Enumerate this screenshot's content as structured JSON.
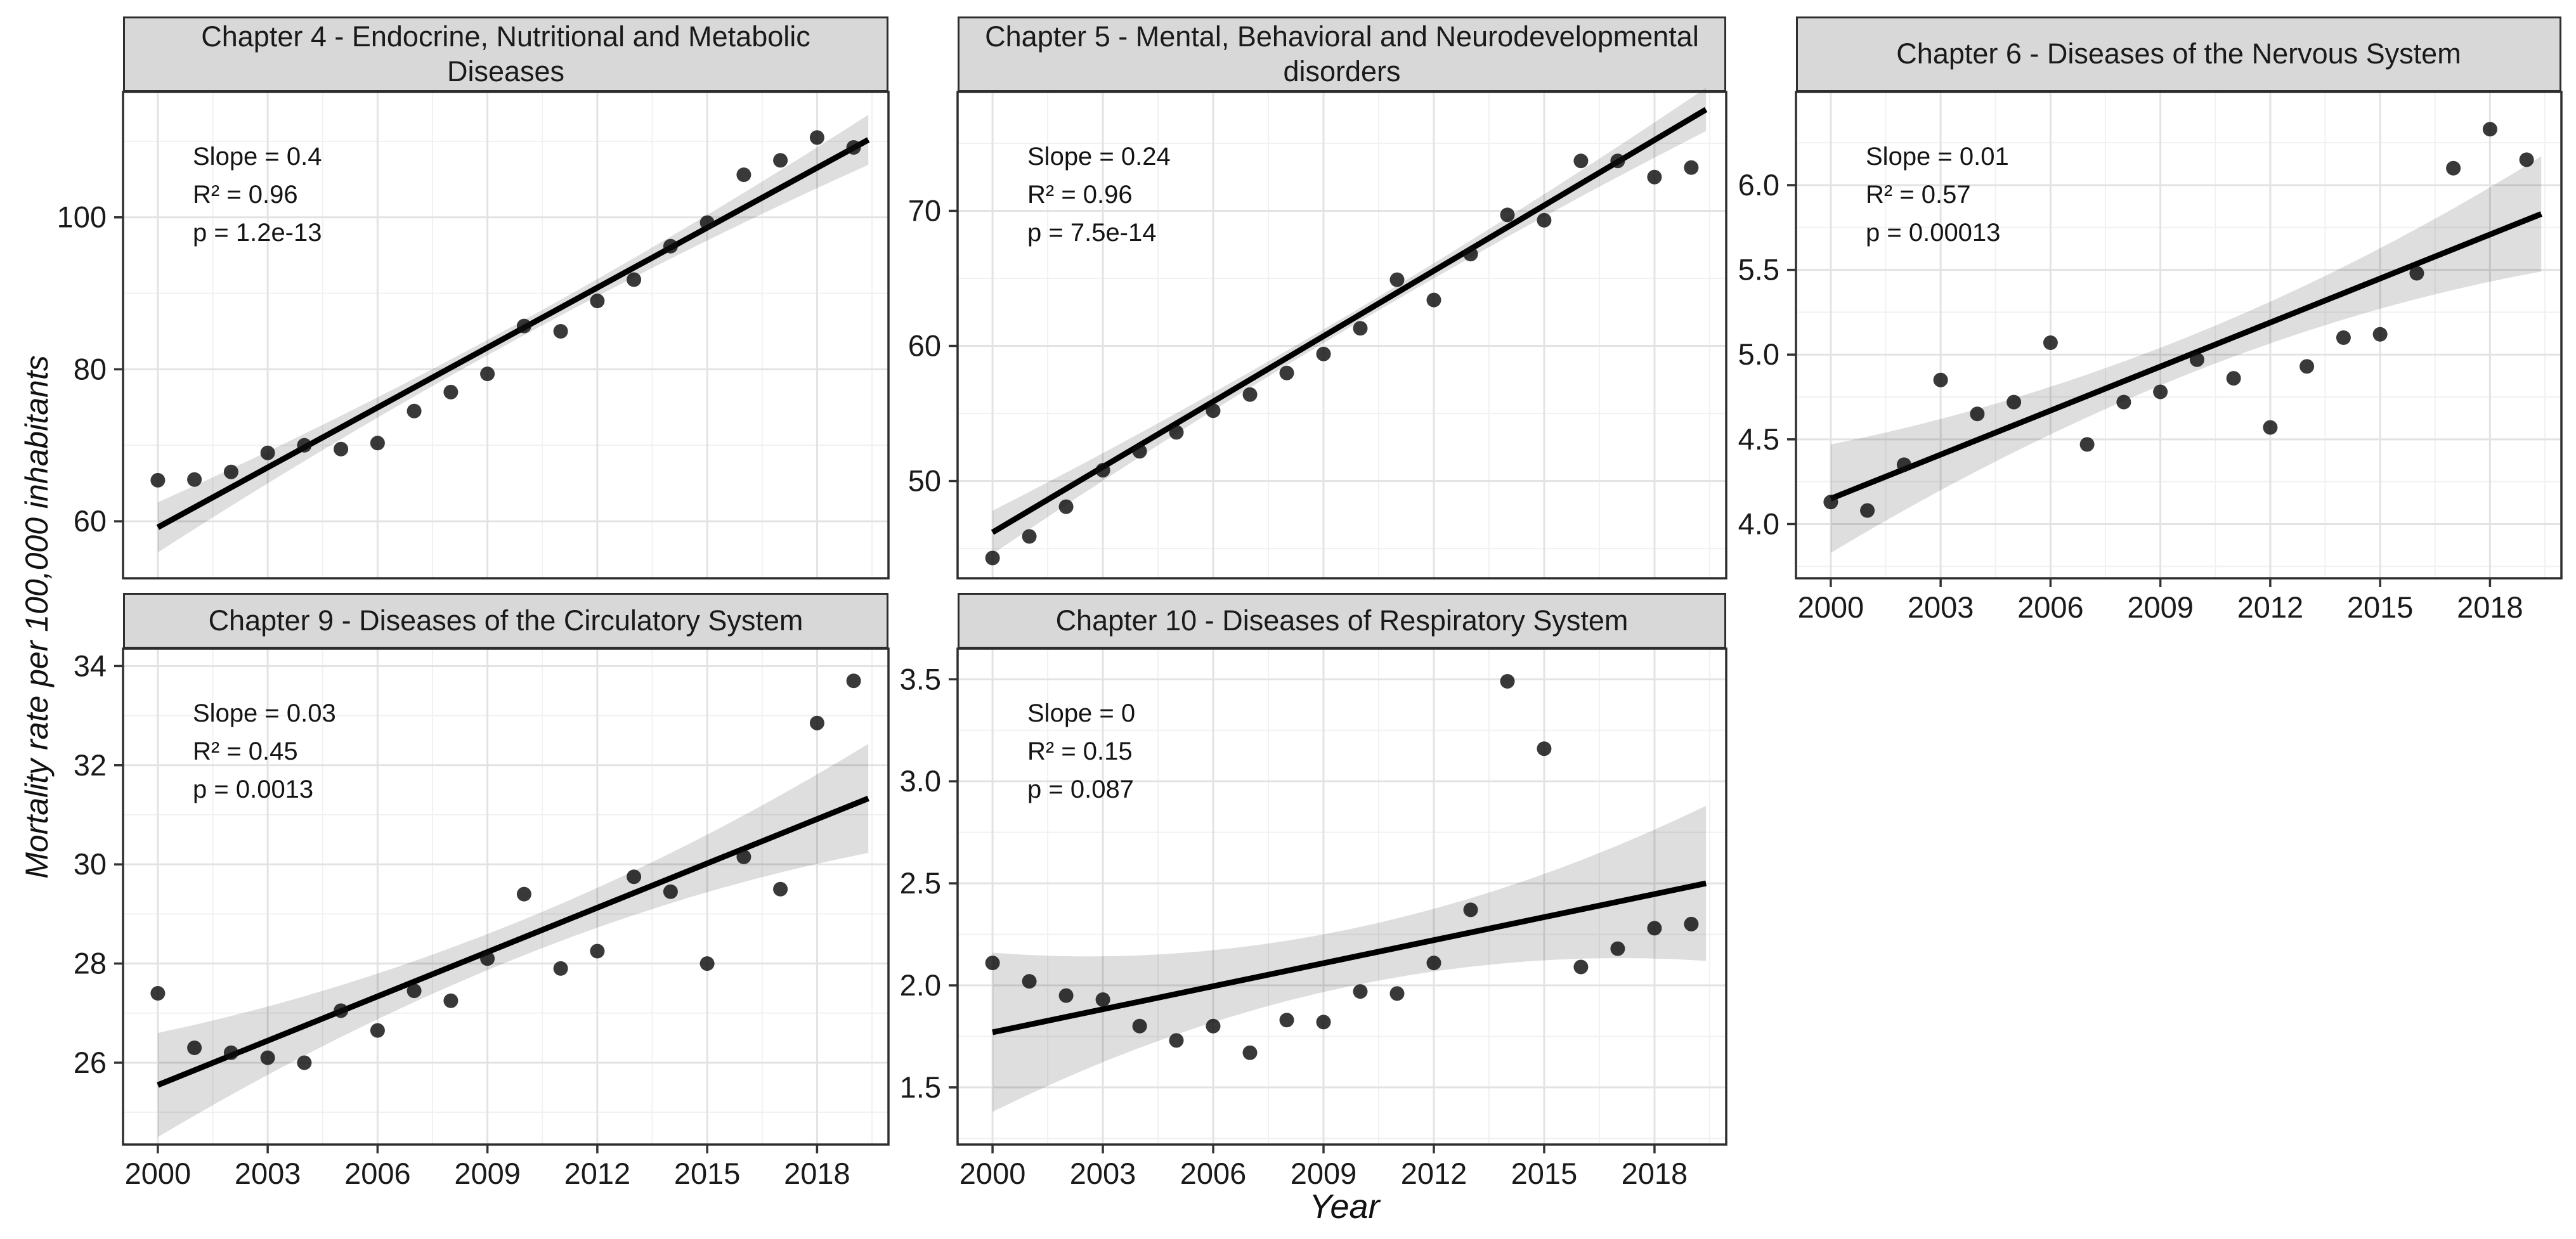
{
  "figure": {
    "y_axis_label": "Mortality rate per 100,000 inhabitants",
    "x_axis_label": "Year"
  },
  "axes": {
    "xlim": [
      1999.05,
      2019.95
    ],
    "x_ticks": [
      2000,
      2003,
      2006,
      2009,
      2012,
      2015,
      2018
    ],
    "x_minor": [
      2001.5,
      2004.5,
      2007.5,
      2010.5,
      2013.5,
      2016.5,
      2019.5
    ]
  },
  "colors": {
    "strip_bg": "#d8d8d8",
    "panel_border": "#2e2e2e",
    "grid_major": "#e3e3e3",
    "grid_minor": "#f1f1f1",
    "ribbon": "rgba(0,0,0,0.13)",
    "trend_line": "#000000",
    "point": "#0d0d0d",
    "axis_text": "#1a1a1a",
    "tick_mark": "#333333"
  },
  "chart_data": [
    {
      "type": "scatter",
      "title": "Chapter 4 - Endocrine, Nutritional and Metabolic Diseases",
      "stats": [
        "Slope = 0.4",
        "R² = 0.96",
        "p = 1.2e-13"
      ],
      "x": [
        2000,
        2001,
        2002,
        2003,
        2004,
        2005,
        2006,
        2007,
        2008,
        2009,
        2010,
        2011,
        2012,
        2013,
        2014,
        2015,
        2016,
        2017,
        2018,
        2019
      ],
      "values": [
        65.4,
        65.5,
        66.5,
        69.0,
        70.0,
        69.5,
        70.3,
        74.5,
        77.0,
        79.4,
        85.7,
        85.0,
        89.0,
        91.8,
        96.2,
        99.3,
        105.6,
        107.5,
        110.5,
        109.2
      ],
      "ylim": [
        52.5,
        116.5
      ],
      "ytick_values": [
        60,
        80,
        100
      ],
      "ytick_labels": [
        "60",
        "80",
        "100"
      ],
      "yminor": [
        70,
        90,
        110
      ],
      "trend": {
        "x0": 2000,
        "y0": 59.2,
        "x1": 2019.4,
        "y1": 110.2
      },
      "ribbon": {
        "start": 3.3,
        "mid": 1.0,
        "end": 3.3
      },
      "grid": {
        "row": 0,
        "col": 0
      },
      "show_x_axis": false
    },
    {
      "type": "scatter",
      "title": "Chapter 5 - Mental, Behavioral and Neurodevelopmental disorders",
      "stats": [
        "Slope = 0.24",
        "R² = 0.96",
        "p = 7.5e-14"
      ],
      "x": [
        2000,
        2001,
        2002,
        2003,
        2004,
        2005,
        2006,
        2007,
        2008,
        2009,
        2010,
        2011,
        2012,
        2013,
        2014,
        2015,
        2016,
        2017,
        2018,
        2019
      ],
      "values": [
        44.3,
        45.9,
        48.1,
        50.8,
        52.2,
        53.6,
        55.2,
        56.4,
        58.0,
        59.4,
        61.3,
        64.9,
        63.4,
        66.8,
        69.7,
        69.3,
        73.7,
        73.7,
        72.5,
        73.2
      ],
      "ylim": [
        42.8,
        78.8
      ],
      "ytick_values": [
        50,
        60,
        70
      ],
      "ytick_labels": [
        "50",
        "60",
        "70"
      ],
      "yminor": [
        45,
        55,
        65,
        75
      ],
      "trend": {
        "x0": 2000,
        "y0": 46.2,
        "x1": 2019.4,
        "y1": 77.5
      },
      "ribbon": {
        "start": 1.6,
        "mid": 0.5,
        "end": 1.6
      },
      "grid": {
        "row": 0,
        "col": 1
      },
      "show_x_axis": false
    },
    {
      "type": "scatter",
      "title": "Chapter 6 - Diseases of the Nervous System",
      "stats": [
        "Slope = 0.01",
        "R² = 0.57",
        "p = 0.00013"
      ],
      "x": [
        2000,
        2001,
        2002,
        2003,
        2004,
        2005,
        2006,
        2007,
        2008,
        2009,
        2010,
        2011,
        2012,
        2013,
        2014,
        2015,
        2016,
        2017,
        2018,
        2019
      ],
      "values": [
        4.13,
        4.08,
        4.35,
        4.85,
        4.65,
        4.72,
        5.07,
        4.47,
        4.72,
        4.78,
        4.97,
        4.86,
        4.57,
        4.93,
        5.1,
        5.12,
        5.48,
        6.1,
        6.33,
        6.15
      ],
      "ylim": [
        3.68,
        6.55
      ],
      "ytick_values": [
        4.0,
        4.5,
        5.0,
        5.5,
        6.0
      ],
      "ytick_labels": [
        "4.0",
        "4.5",
        "5.0",
        "5.5",
        "6.0"
      ],
      "yminor": [
        3.75,
        4.25,
        4.75,
        5.25,
        5.75,
        6.25
      ],
      "trend": {
        "x0": 2000,
        "y0": 4.15,
        "x1": 2019.4,
        "y1": 5.83
      },
      "ribbon": {
        "start": 0.32,
        "mid": 0.11,
        "end": 0.34
      },
      "grid": {
        "row": 0,
        "col": 2
      },
      "show_x_axis": true
    },
    {
      "type": "scatter",
      "title": "Chapter 9 - Diseases of the Circulatory System",
      "stats": [
        "Slope = 0.03",
        "R² = 0.45",
        "p = 0.0013"
      ],
      "x": [
        2000,
        2001,
        2002,
        2003,
        2004,
        2005,
        2006,
        2007,
        2008,
        2009,
        2010,
        2011,
        2012,
        2013,
        2014,
        2015,
        2016,
        2017,
        2018,
        2019
      ],
      "values": [
        27.4,
        26.3,
        26.2,
        26.1,
        26.0,
        27.05,
        26.65,
        27.45,
        27.25,
        28.1,
        29.4,
        27.9,
        28.25,
        29.75,
        29.45,
        28.0,
        30.15,
        29.5,
        32.85,
        33.7
      ],
      "ylim": [
        24.35,
        34.35
      ],
      "ytick_values": [
        26,
        28,
        30,
        32,
        34
      ],
      "ytick_labels": [
        "26",
        "28",
        "30",
        "32",
        "34"
      ],
      "yminor": [
        25,
        27,
        29,
        31,
        33
      ],
      "trend": {
        "x0": 2000,
        "y0": 25.55,
        "x1": 2019.4,
        "y1": 31.33
      },
      "ribbon": {
        "start": 1.05,
        "mid": 0.36,
        "end": 1.1
      },
      "grid": {
        "row": 1,
        "col": 0
      },
      "show_x_axis": true
    },
    {
      "type": "scatter",
      "title": "Chapter 10 - Diseases of Respiratory System",
      "stats": [
        "Slope = 0",
        "R² = 0.15",
        "p = 0.087"
      ],
      "x": [
        2000,
        2001,
        2002,
        2003,
        2004,
        2005,
        2006,
        2007,
        2008,
        2009,
        2010,
        2011,
        2012,
        2013,
        2014,
        2015,
        2016,
        2017,
        2018,
        2019
      ],
      "values": [
        2.11,
        2.02,
        1.95,
        1.93,
        1.8,
        1.73,
        1.8,
        1.67,
        1.83,
        1.82,
        1.97,
        1.96,
        2.11,
        2.37,
        3.49,
        3.16,
        2.09,
        2.18,
        2.28,
        2.3
      ],
      "ylim": [
        1.22,
        3.65
      ],
      "ytick_values": [
        1.5,
        2.0,
        2.5,
        3.0,
        3.5
      ],
      "ytick_labels": [
        "1.5",
        "2.0",
        "2.5",
        "3.0",
        "3.5"
      ],
      "yminor": [
        1.25,
        1.75,
        2.25,
        2.75,
        3.25
      ],
      "trend": {
        "x0": 2000,
        "y0": 1.77,
        "x1": 2019.4,
        "y1": 2.5
      },
      "ribbon": {
        "start": 0.39,
        "mid": 0.14,
        "end": 0.38
      },
      "grid": {
        "row": 1,
        "col": 1
      },
      "show_x_axis": true
    }
  ]
}
